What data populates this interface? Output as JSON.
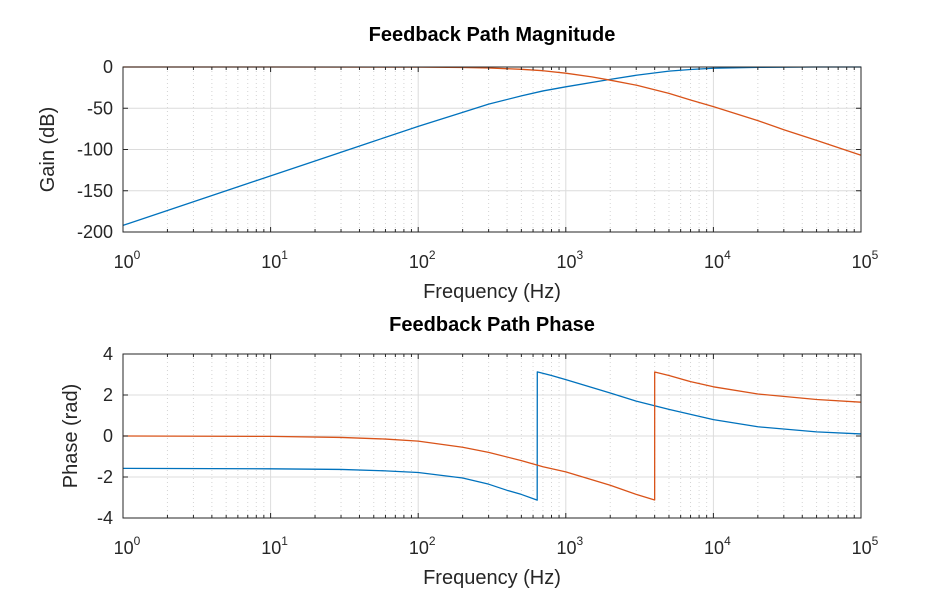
{
  "chart_data": [
    {
      "type": "line",
      "title": "Feedback Path Magnitude",
      "xlabel": "Frequency (Hz)",
      "ylabel": "Gain (dB)",
      "xscale": "log",
      "xlim": [
        1,
        100000
      ],
      "ylim": [
        -200,
        0
      ],
      "yticks": [
        "-200",
        "-150",
        "-100",
        "-50",
        "0"
      ],
      "xtick_base": "10",
      "xtick_exponents": [
        "0",
        "1",
        "2",
        "3",
        "4",
        "5"
      ],
      "grid": true,
      "series": [
        {
          "color": "#0072BD",
          "x": [
            1,
            2,
            5,
            10,
            20,
            50,
            100,
            200,
            300,
            500,
            700,
            1000,
            2000,
            3000,
            5000,
            7000,
            10000,
            20000,
            50000,
            100000
          ],
          "values": [
            -192,
            -174,
            -150,
            -132,
            -114,
            -90,
            -72,
            -55,
            -45,
            -35,
            -29,
            -24,
            -15,
            -10,
            -5,
            -3,
            -1.5,
            -0.5,
            0,
            0
          ]
        },
        {
          "color": "#D95319",
          "x": [
            1,
            10,
            100,
            200,
            300,
            500,
            700,
            1000,
            1500,
            2000,
            3000,
            5000,
            7000,
            10000,
            20000,
            30000,
            50000,
            100000
          ],
          "values": [
            0,
            0,
            -0.2,
            -0.6,
            -1.2,
            -2.8,
            -4.5,
            -7.5,
            -12,
            -16,
            -22,
            -32,
            -40,
            -48,
            -65,
            -76,
            -89,
            -107
          ]
        }
      ]
    },
    {
      "type": "line",
      "title": "Feedback Path Phase",
      "xlabel": "Frequency (Hz)",
      "ylabel": "Phase (rad)",
      "xscale": "log",
      "xlim": [
        1,
        100000
      ],
      "ylim": [
        -4,
        4
      ],
      "yticks": [
        "-4",
        "-2",
        "0",
        "2",
        "4"
      ],
      "xtick_base": "10",
      "xtick_exponents": [
        "0",
        "1",
        "2",
        "3",
        "4",
        "5"
      ],
      "grid": true,
      "series": [
        {
          "color": "#0072BD",
          "x": [
            1,
            10,
            30,
            60,
            100,
            200,
            300,
            400,
            500,
            640,
            641,
            800,
            1000,
            2000,
            3000,
            5000,
            10000,
            20000,
            50000,
            100000
          ],
          "values": [
            -1.58,
            -1.6,
            -1.63,
            -1.7,
            -1.78,
            -2.05,
            -2.35,
            -2.65,
            -2.85,
            -3.13,
            3.13,
            2.95,
            2.75,
            2.1,
            1.7,
            1.3,
            0.8,
            0.45,
            0.2,
            0.1
          ]
        },
        {
          "color": "#D95319",
          "x": [
            1,
            10,
            30,
            60,
            100,
            200,
            300,
            500,
            700,
            1000,
            2000,
            3000,
            4000,
            4001,
            5000,
            7000,
            10000,
            20000,
            50000,
            100000
          ],
          "values": [
            0,
            -0.02,
            -0.07,
            -0.15,
            -0.25,
            -0.55,
            -0.8,
            -1.2,
            -1.5,
            -1.75,
            -2.4,
            -2.85,
            -3.12,
            3.12,
            2.95,
            2.65,
            2.4,
            2.05,
            1.78,
            1.65
          ]
        }
      ]
    }
  ]
}
